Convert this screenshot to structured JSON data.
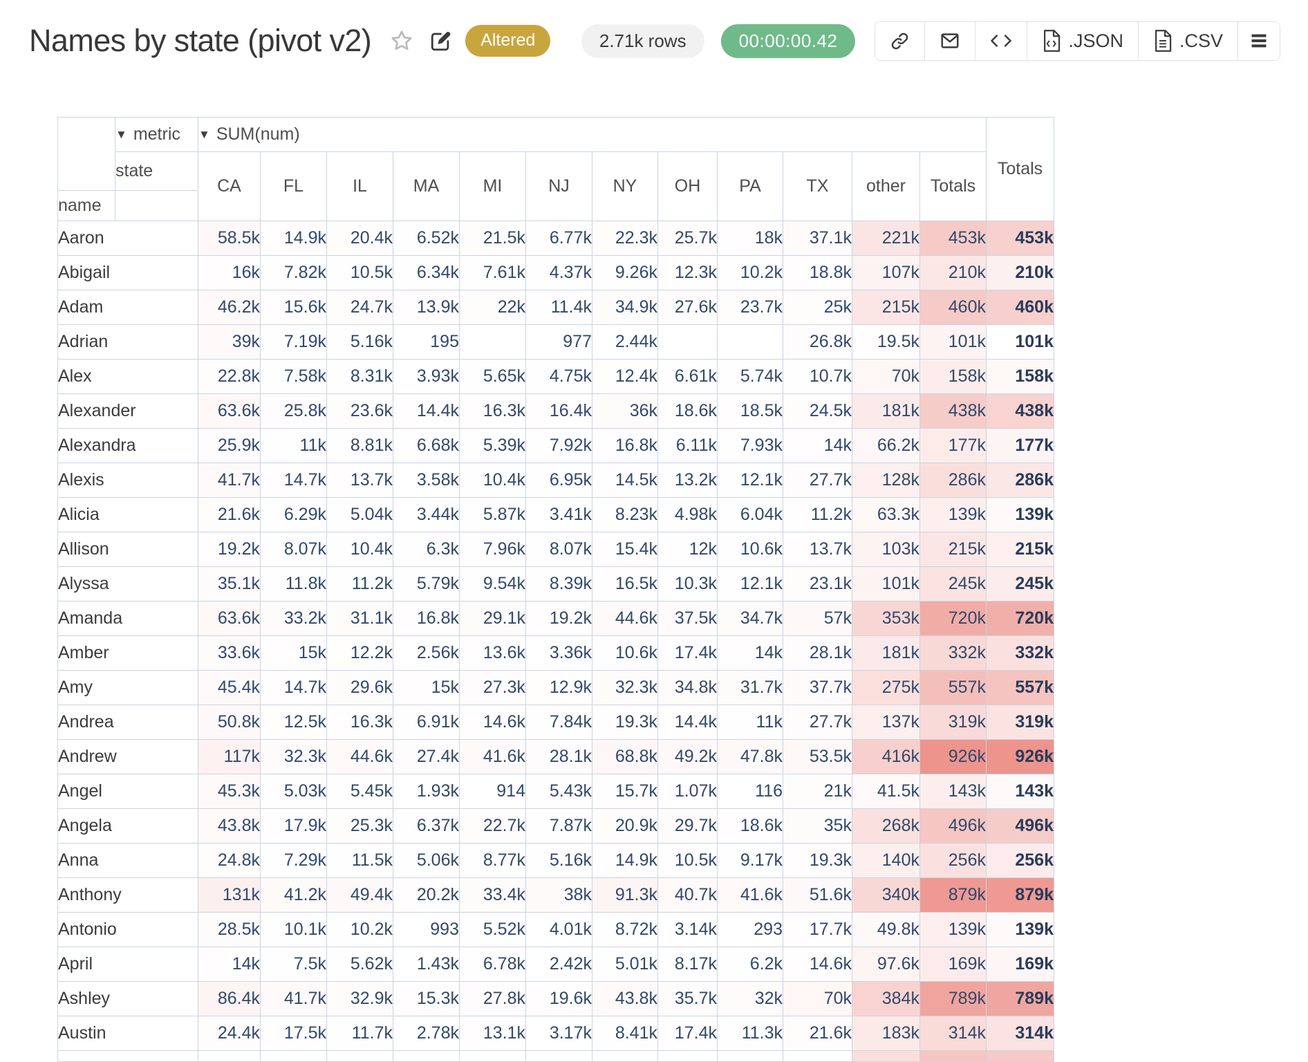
{
  "header": {
    "title": "Names by state (pivot v2)",
    "status_badge": "Altered",
    "rows_pill": "2.71k rows",
    "timer_pill": "00:00:00.42",
    "toolbar": {
      "json_label": ".JSON",
      "csv_label": ".CSV"
    }
  },
  "pivot": {
    "metric_label": "metric",
    "metric_value": "SUM(num)",
    "state_label": "state",
    "name_label": "name",
    "totals_label": "Totals",
    "columns": [
      "CA",
      "FL",
      "IL",
      "MA",
      "MI",
      "NJ",
      "NY",
      "OH",
      "PA",
      "TX",
      "other",
      "Totals"
    ],
    "rows": [
      {
        "name": "Aaron",
        "values": [
          "58.5k",
          "14.9k",
          "20.4k",
          "6.52k",
          "21.5k",
          "6.77k",
          "22.3k",
          "25.7k",
          "18k",
          "37.1k",
          "221k",
          "453k"
        ],
        "grand": "453k"
      },
      {
        "name": "Abigail",
        "values": [
          "16k",
          "7.82k",
          "10.5k",
          "6.34k",
          "7.61k",
          "4.37k",
          "9.26k",
          "12.3k",
          "10.2k",
          "18.8k",
          "107k",
          "210k"
        ],
        "grand": "210k"
      },
      {
        "name": "Adam",
        "values": [
          "46.2k",
          "15.6k",
          "24.7k",
          "13.9k",
          "22k",
          "11.4k",
          "34.9k",
          "27.6k",
          "23.7k",
          "25k",
          "215k",
          "460k"
        ],
        "grand": "460k"
      },
      {
        "name": "Adrian",
        "values": [
          "39k",
          "7.19k",
          "5.16k",
          "195",
          "",
          "977",
          "2.44k",
          "",
          "",
          "26.8k",
          "19.5k",
          "101k"
        ],
        "grand": "101k"
      },
      {
        "name": "Alex",
        "values": [
          "22.8k",
          "7.58k",
          "8.31k",
          "3.93k",
          "5.65k",
          "4.75k",
          "12.4k",
          "6.61k",
          "5.74k",
          "10.7k",
          "70k",
          "158k"
        ],
        "grand": "158k"
      },
      {
        "name": "Alexander",
        "values": [
          "63.6k",
          "25.8k",
          "23.6k",
          "14.4k",
          "16.3k",
          "16.4k",
          "36k",
          "18.6k",
          "18.5k",
          "24.5k",
          "181k",
          "438k"
        ],
        "grand": "438k"
      },
      {
        "name": "Alexandra",
        "values": [
          "25.9k",
          "11k",
          "8.81k",
          "6.68k",
          "5.39k",
          "7.92k",
          "16.8k",
          "6.11k",
          "7.93k",
          "14k",
          "66.2k",
          "177k"
        ],
        "grand": "177k"
      },
      {
        "name": "Alexis",
        "values": [
          "41.7k",
          "14.7k",
          "13.7k",
          "3.58k",
          "10.4k",
          "6.95k",
          "14.5k",
          "13.2k",
          "12.1k",
          "27.7k",
          "128k",
          "286k"
        ],
        "grand": "286k"
      },
      {
        "name": "Alicia",
        "values": [
          "21.6k",
          "6.29k",
          "5.04k",
          "3.44k",
          "5.87k",
          "3.41k",
          "8.23k",
          "4.98k",
          "6.04k",
          "11.2k",
          "63.3k",
          "139k"
        ],
        "grand": "139k"
      },
      {
        "name": "Allison",
        "values": [
          "19.2k",
          "8.07k",
          "10.4k",
          "6.3k",
          "7.96k",
          "8.07k",
          "15.4k",
          "12k",
          "10.6k",
          "13.7k",
          "103k",
          "215k"
        ],
        "grand": "215k"
      },
      {
        "name": "Alyssa",
        "values": [
          "35.1k",
          "11.8k",
          "11.2k",
          "5.79k",
          "9.54k",
          "8.39k",
          "16.5k",
          "10.3k",
          "12.1k",
          "23.1k",
          "101k",
          "245k"
        ],
        "grand": "245k"
      },
      {
        "name": "Amanda",
        "values": [
          "63.6k",
          "33.2k",
          "31.1k",
          "16.8k",
          "29.1k",
          "19.2k",
          "44.6k",
          "37.5k",
          "34.7k",
          "57k",
          "353k",
          "720k"
        ],
        "grand": "720k"
      },
      {
        "name": "Amber",
        "values": [
          "33.6k",
          "15k",
          "12.2k",
          "2.56k",
          "13.6k",
          "3.36k",
          "10.6k",
          "17.4k",
          "14k",
          "28.1k",
          "181k",
          "332k"
        ],
        "grand": "332k"
      },
      {
        "name": "Amy",
        "values": [
          "45.4k",
          "14.7k",
          "29.6k",
          "15k",
          "27.3k",
          "12.9k",
          "32.3k",
          "34.8k",
          "31.7k",
          "37.7k",
          "275k",
          "557k"
        ],
        "grand": "557k"
      },
      {
        "name": "Andrea",
        "values": [
          "50.8k",
          "12.5k",
          "16.3k",
          "6.91k",
          "14.6k",
          "7.84k",
          "19.3k",
          "14.4k",
          "11k",
          "27.7k",
          "137k",
          "319k"
        ],
        "grand": "319k"
      },
      {
        "name": "Andrew",
        "values": [
          "117k",
          "32.3k",
          "44.6k",
          "27.4k",
          "41.6k",
          "28.1k",
          "68.8k",
          "49.2k",
          "47.8k",
          "53.5k",
          "416k",
          "926k"
        ],
        "grand": "926k"
      },
      {
        "name": "Angel",
        "values": [
          "45.3k",
          "5.03k",
          "5.45k",
          "1.93k",
          "914",
          "5.43k",
          "15.7k",
          "1.07k",
          "116",
          "21k",
          "41.5k",
          "143k"
        ],
        "grand": "143k"
      },
      {
        "name": "Angela",
        "values": [
          "43.8k",
          "17.9k",
          "25.3k",
          "6.37k",
          "22.7k",
          "7.87k",
          "20.9k",
          "29.7k",
          "18.6k",
          "35k",
          "268k",
          "496k"
        ],
        "grand": "496k"
      },
      {
        "name": "Anna",
        "values": [
          "24.8k",
          "7.29k",
          "11.5k",
          "5.06k",
          "8.77k",
          "5.16k",
          "14.9k",
          "10.5k",
          "9.17k",
          "19.3k",
          "140k",
          "256k"
        ],
        "grand": "256k"
      },
      {
        "name": "Anthony",
        "values": [
          "131k",
          "41.2k",
          "49.4k",
          "20.2k",
          "33.4k",
          "38k",
          "91.3k",
          "40.7k",
          "41.6k",
          "51.6k",
          "340k",
          "879k"
        ],
        "grand": "879k"
      },
      {
        "name": "Antonio",
        "values": [
          "28.5k",
          "10.1k",
          "10.2k",
          "993",
          "5.52k",
          "4.01k",
          "8.72k",
          "3.14k",
          "293",
          "17.7k",
          "49.8k",
          "139k"
        ],
        "grand": "139k"
      },
      {
        "name": "April",
        "values": [
          "14k",
          "7.5k",
          "5.62k",
          "1.43k",
          "6.78k",
          "2.42k",
          "5.01k",
          "8.17k",
          "6.2k",
          "14.6k",
          "97.6k",
          "169k"
        ],
        "grand": "169k"
      },
      {
        "name": "Ashley",
        "values": [
          "86.4k",
          "41.7k",
          "32.9k",
          "15.3k",
          "27.8k",
          "19.6k",
          "43.8k",
          "35.7k",
          "32k",
          "70k",
          "384k",
          "789k"
        ],
        "grand": "789k"
      },
      {
        "name": "Austin",
        "values": [
          "24.4k",
          "17.5k",
          "11.7k",
          "2.78k",
          "13.1k",
          "3.17k",
          "8.41k",
          "17.4k",
          "11.3k",
          "21.6k",
          "183k",
          "314k"
        ],
        "grand": "314k"
      }
    ],
    "partial_row_tints": {
      "other": "#fbdedb",
      "totals": "#f5c6c2",
      "grand": "#f6cac6"
    }
  },
  "heatmap": {
    "max_color": "#ed948d",
    "grid_color": "#cbd4e2"
  }
}
